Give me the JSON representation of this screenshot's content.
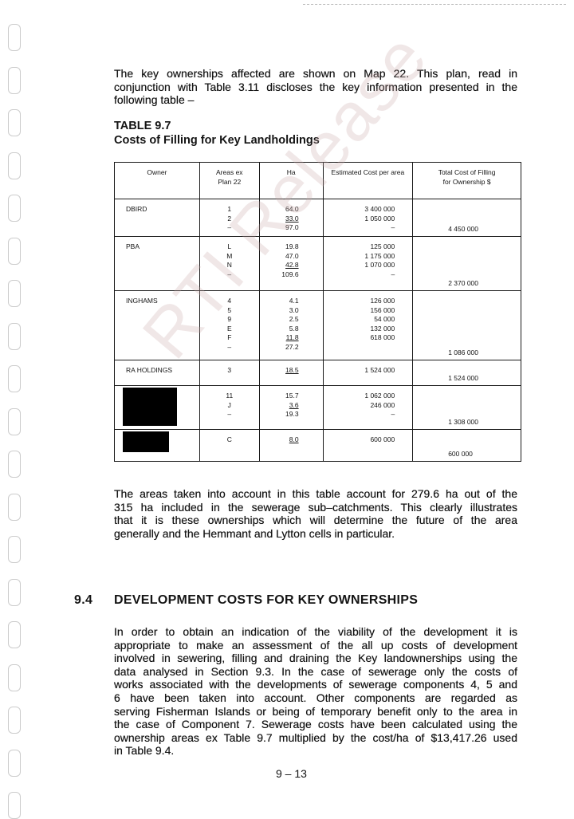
{
  "intro_lines": [
    "The key ownerships affected are shown on Map 22.  This plan, read in",
    "conjunction with Table 3.11 discloses the key information presented in the",
    "following table –"
  ],
  "table_title": "TABLE 9.7",
  "table_subtitle": "Costs of Filling for Key Landholdings",
  "table": {
    "headers": [
      "Owner",
      "Areas ex Plan 22",
      "Ha",
      "Estimated Cost per area",
      "Total Cost of Filling for Ownership $"
    ],
    "rows": [
      {
        "owner": "DBIRD",
        "areas": [
          "1",
          "2",
          "–"
        ],
        "ha": [
          "64.0",
          "33.0",
          "97.0"
        ],
        "cost": [
          "3 400 000",
          "1 050 000",
          "–"
        ],
        "total": "4 450 000"
      },
      {
        "owner": "PBA",
        "areas": [
          "L",
          "M",
          "N",
          "–"
        ],
        "ha": [
          "19.8",
          "47.0",
          "42.8",
          "109.6"
        ],
        "cost": [
          "125 000",
          "1 175 000",
          "1 070 000",
          "–"
        ],
        "total": "2 370 000"
      },
      {
        "owner": "INGHAMS",
        "areas": [
          "4",
          "5",
          "9",
          "E",
          "F",
          "–"
        ],
        "ha": [
          "4.1",
          "3.0",
          "2.5",
          "5.8",
          "11.8",
          "27.2"
        ],
        "cost": [
          "126 000",
          "156 000",
          "54 000",
          "132 000",
          "618 000",
          ""
        ],
        "total": "1 086 000"
      },
      {
        "owner": "RA HOLDINGS",
        "areas": [
          "3"
        ],
        "ha": [
          "18.5"
        ],
        "cost": [
          "1 524 000"
        ],
        "total": "1 524 000"
      },
      {
        "owner": "",
        "redacted": true,
        "areas": [
          "11",
          "J",
          "–"
        ],
        "ha": [
          "15.7",
          "3.6",
          "19.3"
        ],
        "cost": [
          "1 062 000",
          "246 000",
          "–"
        ],
        "total": "1 308 000"
      },
      {
        "owner": "",
        "redacted": true,
        "areas": [
          "C"
        ],
        "ha": [
          "8.0"
        ],
        "cost": [
          "600 000"
        ],
        "total": "600 000"
      }
    ]
  },
  "after_table_lines": [
    "The areas taken into account in this table account for 279.6 ha out of the",
    "315 ha included in the sewerage sub–catchments.  This clearly illustrates",
    "that it is these ownerships which will determine the future of the area",
    "generally and the Hemmant and Lytton cells in particular."
  ],
  "section": {
    "number": "9.4",
    "title": "DEVELOPMENT COSTS FOR KEY OWNERSHIPS"
  },
  "section_lines": [
    "In order to obtain an indication of the viability of the development it is",
    "appropriate to make an assessment of the all up costs of development",
    "involved in sewering, filling and draining the Key landownerships using the",
    "data analysed in Section 9.3.  In the case of sewerage only the costs of",
    "works associated with the developments of sewerage components 4, 5 and",
    "6 have been taken into account.  Other components are regarded as",
    "serving Fisherman Islands or being of temporary benefit only to the area in",
    "the case of Component 7.  Sewerage costs have been calculated using the",
    "ownership areas ex Table 9.7 multiplied by the cost/ha of $13,417.26 used",
    "in Table 9.4."
  ],
  "page_number": "9 – 13",
  "watermark": "RTI Release"
}
